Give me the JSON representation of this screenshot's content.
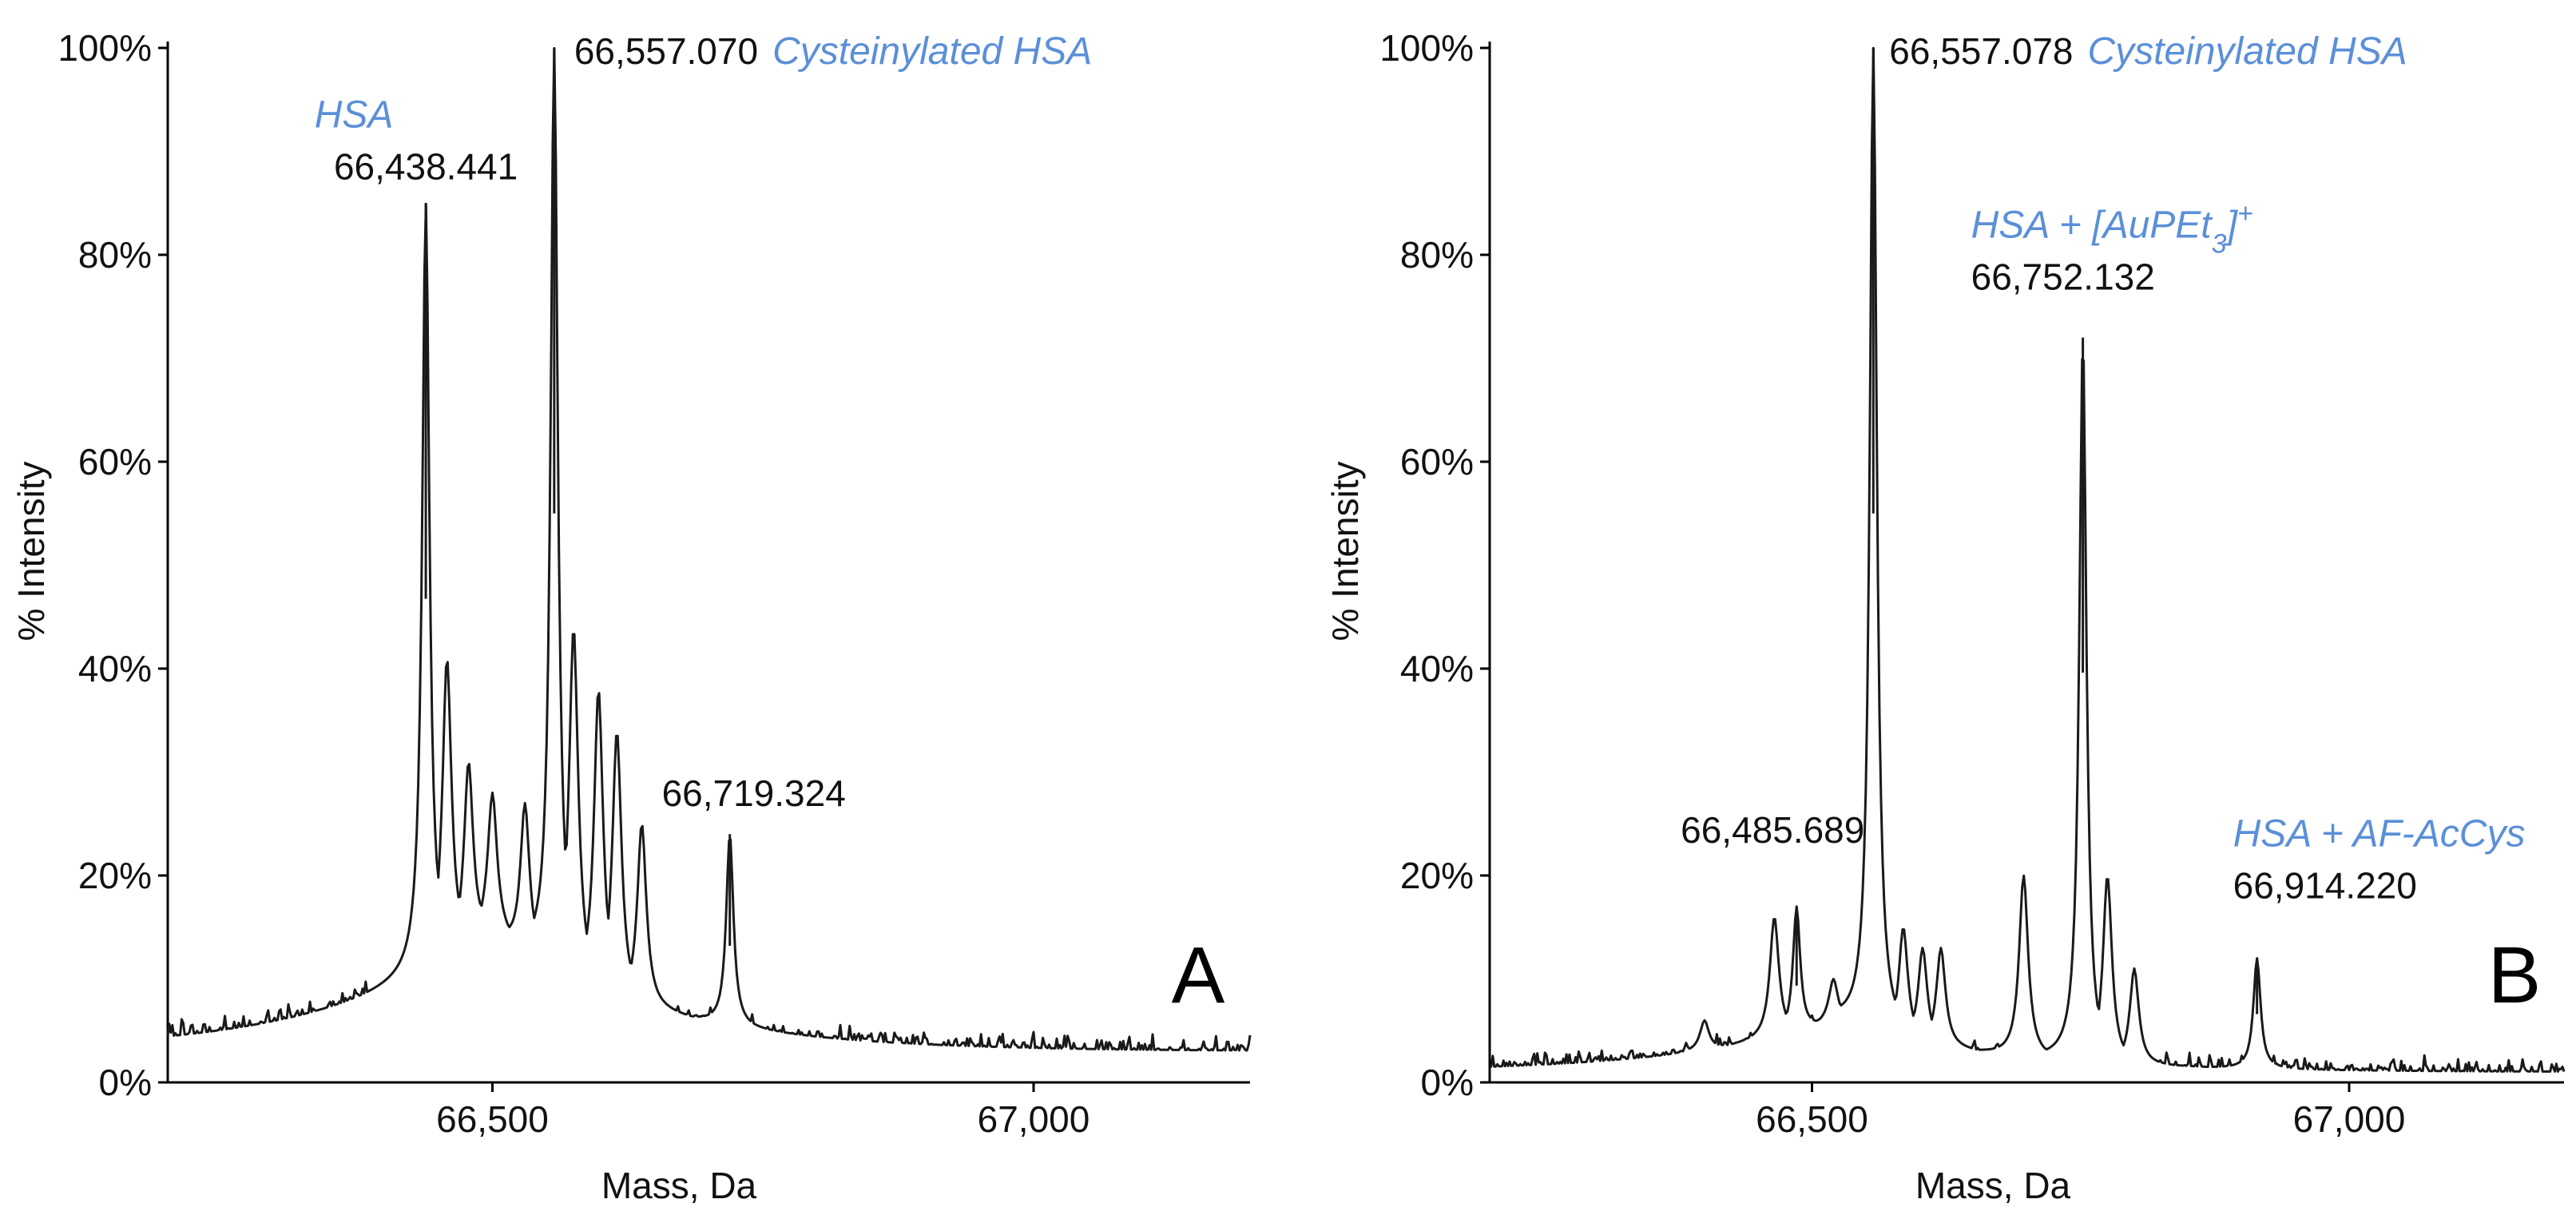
{
  "colors": {
    "trace": "#1a1a1a",
    "annotation": "#5b8fd8",
    "text": "#111111"
  },
  "chart_data": [
    {
      "type": "line",
      "panel_label": "A",
      "xlabel": "Mass, Da",
      "ylabel": "% Intensity",
      "xlim": [
        66200,
        67200
      ],
      "ylim": [
        0,
        100
      ],
      "x_ticks": [
        66500,
        67000
      ],
      "x_tick_labels": [
        "66,500",
        "67,000"
      ],
      "y_ticks": [
        0,
        20,
        40,
        60,
        80,
        100
      ],
      "y_tick_labels": [
        "0%",
        "20%",
        "40%",
        "60%",
        "80%",
        "100%"
      ],
      "peaks": [
        {
          "mass": 66438.441,
          "intensity": 85,
          "label": "66,438.441",
          "name": "HSA"
        },
        {
          "mass": 66557.07,
          "intensity": 100,
          "label": "66,557.070",
          "name": "Cysteinylated HSA"
        },
        {
          "mass": 66719.324,
          "intensity": 24,
          "label": "66,719.324",
          "name": ""
        }
      ],
      "minor_peaks": [
        {
          "mass": 66458,
          "intensity": 41
        },
        {
          "mass": 66478,
          "intensity": 31
        },
        {
          "mass": 66500,
          "intensity": 28
        },
        {
          "mass": 66530,
          "intensity": 27
        },
        {
          "mass": 66575,
          "intensity": 44
        },
        {
          "mass": 66598,
          "intensity": 38
        },
        {
          "mass": 66615,
          "intensity": 34
        },
        {
          "mass": 66638,
          "intensity": 25
        }
      ],
      "baseline": {
        "left": 3,
        "peak_base": 15,
        "right": 3
      }
    },
    {
      "type": "line",
      "panel_label": "B",
      "xlabel": "Mass, Da",
      "ylabel": "% Intensity",
      "xlim": [
        66200,
        67200
      ],
      "ylim": [
        0,
        100
      ],
      "x_ticks": [
        66500,
        67000
      ],
      "x_tick_labels": [
        "66,500",
        "67,000"
      ],
      "y_ticks": [
        0,
        20,
        40,
        60,
        80,
        100
      ],
      "y_tick_labels": [
        "0%",
        "20%",
        "40%",
        "60%",
        "80%",
        "100%"
      ],
      "peaks": [
        {
          "mass": 66485.689,
          "intensity": 17,
          "label": "66,485.689",
          "name": ""
        },
        {
          "mass": 66557.078,
          "intensity": 100,
          "label": "66,557.078",
          "name": "Cysteinylated HSA"
        },
        {
          "mass": 66752.132,
          "intensity": 72,
          "label": "66,752.132",
          "name": "HSA + [AuPEt3]+"
        },
        {
          "mass": 66914.22,
          "intensity": 12,
          "label": "66,914.220",
          "name": "HSA + AF-AcCys"
        }
      ],
      "minor_peaks": [
        {
          "mass": 66465,
          "intensity": 16
        },
        {
          "mass": 66400,
          "intensity": 6
        },
        {
          "mass": 66520,
          "intensity": 10
        },
        {
          "mass": 66585,
          "intensity": 15
        },
        {
          "mass": 66603,
          "intensity": 13
        },
        {
          "mass": 66620,
          "intensity": 13
        },
        {
          "mass": 66697,
          "intensity": 20
        },
        {
          "mass": 66775,
          "intensity": 20
        },
        {
          "mass": 66800,
          "intensity": 11
        }
      ],
      "baseline": {
        "left": 1,
        "peak_base": 6,
        "right": 1
      }
    }
  ]
}
